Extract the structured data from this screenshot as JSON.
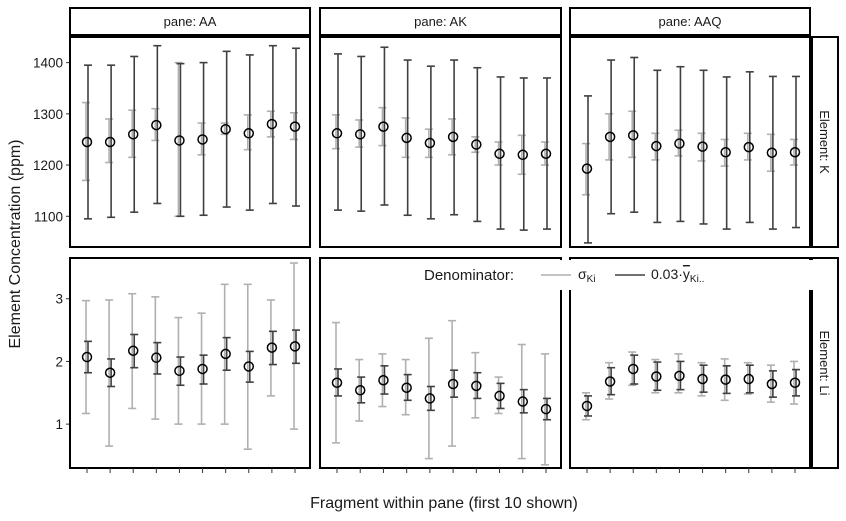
{
  "chart_data": {
    "type": "scatter",
    "ylabel": "Element Concentration (ppm)",
    "xlabel": "Fragment within pane (first 10 shown)",
    "panes": [
      "pane: AA",
      "pane: AK",
      "pane: AAQ"
    ],
    "elements": [
      "Element: K",
      "Element: Li"
    ],
    "legend": {
      "title": "Denominator:",
      "sigma_symbol": "σ",
      "sigma_sub": "Ki",
      "mean_coef": "0.03·",
      "mean_symbol": "y",
      "mean_sub": "Ki.."
    },
    "colors": {
      "sigma": "#b0b0b0",
      "mean": "#404040",
      "point_stroke": "#000000",
      "frame": "#000000"
    },
    "rows": [
      {
        "element": "K",
        "ylim": [
          1040,
          1450
        ],
        "yticks": [
          1100,
          1200,
          1300,
          1400
        ],
        "panels": [
          {
            "pane": "AA",
            "points": [
              1245,
              1245,
              1260,
              1278,
              1248,
              1250,
              1270,
              1262,
              1280,
              1275
            ],
            "sigma_err": [
              [
                1170,
                1322
              ],
              [
                1205,
                1290
              ],
              [
                1215,
                1307
              ],
              [
                1248,
                1310
              ],
              [
                1100,
                1400
              ],
              [
                1220,
                1282
              ],
              [
                1260,
                1282
              ],
              [
                1230,
                1298
              ],
              [
                1255,
                1305
              ],
              [
                1250,
                1302
              ]
            ],
            "mean_err": [
              [
                1095,
                1395
              ],
              [
                1098,
                1395
              ],
              [
                1108,
                1412
              ],
              [
                1125,
                1433
              ],
              [
                1100,
                1398
              ],
              [
                1102,
                1400
              ],
              [
                1118,
                1422
              ],
              [
                1112,
                1415
              ],
              [
                1125,
                1433
              ],
              [
                1120,
                1428
              ]
            ]
          },
          {
            "pane": "AK",
            "points": [
              1262,
              1260,
              1275,
              1253,
              1243,
              1255,
              1240,
              1222,
              1220,
              1222
            ],
            "sigma_err": [
              [
                1232,
                1298
              ],
              [
                1235,
                1288
              ],
              [
                1238,
                1312
              ],
              [
                1215,
                1292
              ],
              [
                1215,
                1270
              ],
              [
                1220,
                1290
              ],
              [
                1225,
                1255
              ],
              [
                1200,
                1245
              ],
              [
                1182,
                1258
              ],
              [
                1200,
                1245
              ]
            ],
            "mean_err": [
              [
                1112,
                1417
              ],
              [
                1110,
                1412
              ],
              [
                1122,
                1430
              ],
              [
                1102,
                1405
              ],
              [
                1095,
                1393
              ],
              [
                1103,
                1405
              ],
              [
                1090,
                1390
              ],
              [
                1075,
                1372
              ],
              [
                1073,
                1370
              ],
              [
                1075,
                1370
              ]
            ]
          },
          {
            "pane": "AAQ",
            "points": [
              1193,
              1255,
              1258,
              1237,
              1242,
              1236,
              1225,
              1235,
              1224,
              1225
            ],
            "sigma_err": [
              [
                1142,
                1242
              ],
              [
                1210,
                1300
              ],
              [
                1215,
                1305
              ],
              [
                1210,
                1262
              ],
              [
                1218,
                1268
              ],
              [
                1208,
                1262
              ],
              [
                1198,
                1250
              ],
              [
                1210,
                1262
              ],
              [
                1188,
                1260
              ],
              [
                1200,
                1250
              ]
            ],
            "mean_err": [
              [
                1048,
                1335
              ],
              [
                1105,
                1405
              ],
              [
                1108,
                1410
              ],
              [
                1088,
                1385
              ],
              [
                1090,
                1392
              ],
              [
                1085,
                1385
              ],
              [
                1075,
                1372
              ],
              [
                1088,
                1382
              ],
              [
                1075,
                1373
              ],
              [
                1078,
                1373
              ]
            ]
          }
        ]
      },
      {
        "element": "Li",
        "ylim": [
          0.3,
          3.65
        ],
        "yticks": [
          1,
          2,
          3
        ],
        "panels": [
          {
            "pane": "AA",
            "points": [
              2.07,
              1.82,
              2.17,
              2.06,
              1.85,
              1.88,
              2.12,
              1.92,
              2.22,
              2.24
            ],
            "sigma_err": [
              [
                1.17,
                2.97
              ],
              [
                0.65,
                2.98
              ],
              [
                1.25,
                3.08
              ],
              [
                1.08,
                3.03
              ],
              [
                1.0,
                2.7
              ],
              [
                1.0,
                2.77
              ],
              [
                1.0,
                3.23
              ],
              [
                0.6,
                3.23
              ],
              [
                1.45,
                2.98
              ],
              [
                0.92,
                3.57
              ]
            ],
            "mean_err": [
              [
                1.82,
                2.32
              ],
              [
                1.6,
                2.04
              ],
              [
                1.9,
                2.43
              ],
              [
                1.8,
                2.3
              ],
              [
                1.62,
                2.07
              ],
              [
                1.64,
                2.1
              ],
              [
                1.86,
                2.38
              ],
              [
                1.67,
                2.16
              ],
              [
                1.95,
                2.48
              ],
              [
                1.97,
                2.5
              ]
            ]
          },
          {
            "pane": "AK",
            "points": [
              1.66,
              1.54,
              1.7,
              1.58,
              1.41,
              1.64,
              1.61,
              1.45,
              1.36,
              1.24
            ],
            "sigma_err": [
              [
                0.7,
                2.62
              ],
              [
                1.05,
                2.03
              ],
              [
                1.28,
                2.12
              ],
              [
                1.15,
                2.03
              ],
              [
                0.45,
                2.37
              ],
              [
                0.65,
                2.65
              ],
              [
                1.1,
                2.14
              ],
              [
                1.17,
                1.75
              ],
              [
                0.45,
                2.27
              ],
              [
                0.35,
                2.12
              ]
            ],
            "mean_err": [
              [
                1.45,
                1.88
              ],
              [
                1.34,
                1.75
              ],
              [
                1.48,
                1.93
              ],
              [
                1.38,
                1.79
              ],
              [
                1.22,
                1.6
              ],
              [
                1.43,
                1.86
              ],
              [
                1.41,
                1.82
              ],
              [
                1.25,
                1.65
              ],
              [
                1.18,
                1.55
              ],
              [
                1.07,
                1.41
              ]
            ]
          },
          {
            "pane": "AAQ",
            "points": [
              1.29,
              1.68,
              1.88,
              1.76,
              1.77,
              1.72,
              1.71,
              1.72,
              1.64,
              1.66
            ],
            "sigma_err": [
              [
                1.07,
                1.5
              ],
              [
                1.4,
                1.98
              ],
              [
                1.62,
                2.15
              ],
              [
                1.5,
                2.03
              ],
              [
                1.5,
                2.12
              ],
              [
                1.45,
                1.98
              ],
              [
                1.38,
                2.04
              ],
              [
                1.48,
                1.98
              ],
              [
                1.35,
                1.94
              ],
              [
                1.32,
                2.0
              ]
            ],
            "mean_err": [
              [
                1.13,
                1.45
              ],
              [
                1.47,
                1.9
              ],
              [
                1.64,
                2.1
              ],
              [
                1.54,
                1.99
              ],
              [
                1.55,
                2.0
              ],
              [
                1.51,
                1.94
              ],
              [
                1.49,
                1.93
              ],
              [
                1.5,
                1.94
              ],
              [
                1.43,
                1.85
              ],
              [
                1.45,
                1.87
              ]
            ]
          }
        ]
      }
    ]
  }
}
